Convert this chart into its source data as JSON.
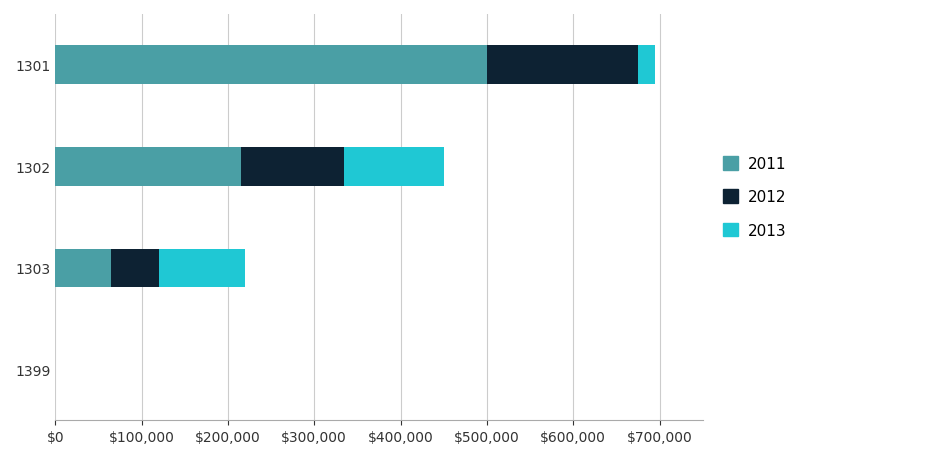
{
  "categories": [
    "1301",
    "1302",
    "1303",
    "1399"
  ],
  "series": {
    "2011": [
      500000,
      215000,
      65000,
      0
    ],
    "2012": [
      175000,
      120000,
      55000,
      0
    ],
    "2013": [
      20000,
      115000,
      100000,
      0
    ]
  },
  "colors": {
    "2011": "#4a9fa5",
    "2012": "#0d2233",
    "2013": "#1fc8d4"
  },
  "xlim": [
    0,
    750000
  ],
  "xtick_values": [
    0,
    100000,
    200000,
    300000,
    400000,
    500000,
    600000,
    700000
  ],
  "bar_height": 0.38,
  "background_color": "#ffffff",
  "grid_color": "#cccccc",
  "legend_labels": [
    "2011",
    "2012",
    "2013"
  ],
  "tick_label_fontsize": 10,
  "legend_fontsize": 11
}
